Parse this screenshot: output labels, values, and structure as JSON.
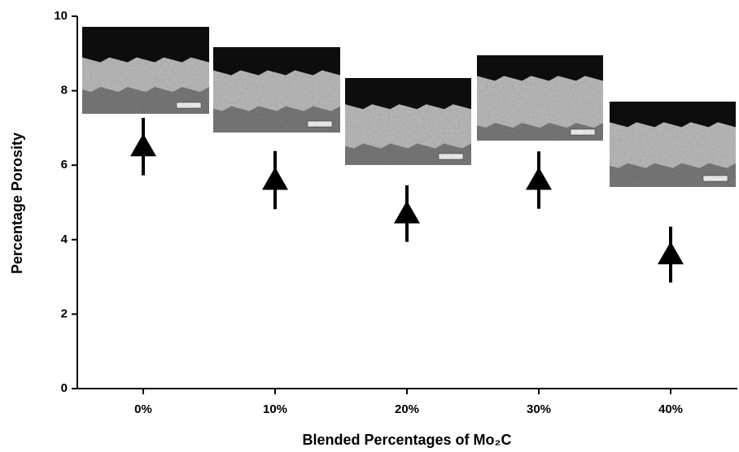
{
  "chart_data": {
    "type": "scatter-errorbar",
    "xlabel": "Blended Percentages of Mo₂C",
    "ylabel": "Percentage Porosity",
    "categories": [
      "0%",
      "10%",
      "20%",
      "30%",
      "40%"
    ],
    "series": [
      {
        "color": "#000000",
        "values": [
          6.5,
          5.6,
          4.7,
          5.6,
          3.6
        ],
        "errors": [
          0.77,
          0.78,
          0.76,
          0.77,
          0.75
        ]
      }
    ],
    "ylim": [
      0,
      10
    ],
    "yticks": [
      0,
      2,
      4,
      6,
      8,
      10
    ]
  }
}
